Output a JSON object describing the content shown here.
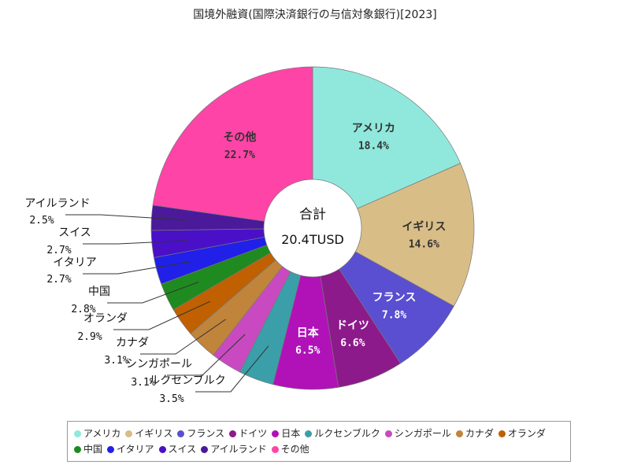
{
  "chart_data": {
    "type": "pie",
    "title": "国境外融資(国際決済銀行の与信対象銀行)[2023]",
    "center_label": "合計",
    "center_value": "20.4TUSD",
    "unit": "%",
    "slices": [
      {
        "name": "アメリカ",
        "value": 18.4,
        "label": "18.4%",
        "color": "#90e8dc"
      },
      {
        "name": "イギリス",
        "value": 14.6,
        "label": "14.6%",
        "color": "#d8bd87"
      },
      {
        "name": "フランス",
        "value": 7.8,
        "label": "7.8%",
        "color": "#5a4fd0"
      },
      {
        "name": "ドイツ",
        "value": 6.6,
        "label": "6.6%",
        "color": "#8c1a8a"
      },
      {
        "name": "日本",
        "value": 6.5,
        "label": "6.5%",
        "color": "#b012b8"
      },
      {
        "name": "ルクセンブルク",
        "value": 3.5,
        "label": "3.5%",
        "color": "#3a9fa8"
      },
      {
        "name": "シンガポール",
        "value": 3.1,
        "label": "3.1%",
        "color": "#c94ac0"
      },
      {
        "name": "カナダ",
        "value": 3.1,
        "label": "3.1%",
        "color": "#c0843a"
      },
      {
        "name": "オランダ",
        "value": 2.9,
        "label": "2.9%",
        "color": "#c06000"
      },
      {
        "name": "中国",
        "value": 2.8,
        "label": "2.8%",
        "color": "#1f8a1f"
      },
      {
        "name": "イタリア",
        "value": 2.7,
        "label": "2.7%",
        "color": "#2020e8"
      },
      {
        "name": "スイス",
        "value": 2.7,
        "label": "2.7%",
        "color": "#4a10c8"
      },
      {
        "name": "アイルランド",
        "value": 2.5,
        "label": "2.5%",
        "color": "#4a1a9a"
      },
      {
        "name": "その他",
        "value": 22.7,
        "label": "22.7%",
        "color": "#ff44a8"
      }
    ]
  }
}
